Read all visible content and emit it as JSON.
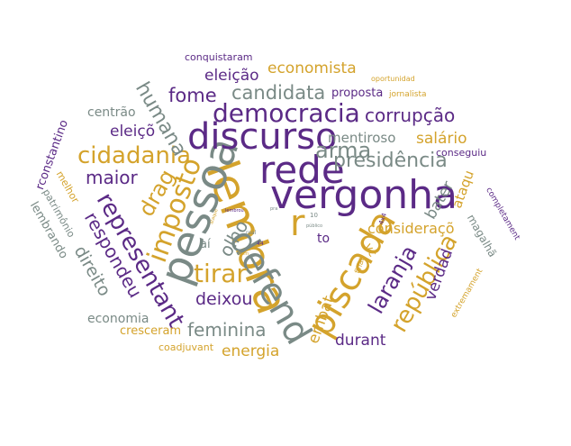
{
  "colors": {
    "purple": "#5b2a86",
    "gold": "#d4a32c",
    "gray": "#7a8a86"
  },
  "words": [
    {
      "id": "vergonha",
      "text": "vergonha"
    },
    {
      "id": "rede",
      "text": "rede"
    },
    {
      "id": "lembra",
      "text": "lembra"
    },
    {
      "id": "pessoa",
      "text": "pessoa"
    },
    {
      "id": "discurso",
      "text": "discurso"
    },
    {
      "id": "piscada",
      "text": "piscada"
    },
    {
      "id": "defend",
      "text": "defend"
    },
    {
      "id": "democracia",
      "text": "democracia"
    },
    {
      "id": "r",
      "text": "r"
    },
    {
      "id": "cidadania",
      "text": "cidadania"
    },
    {
      "id": "imposto",
      "text": "imposto"
    },
    {
      "id": "representant",
      "text": "representant"
    },
    {
      "id": "presidencia",
      "text": "presidência"
    },
    {
      "id": "arma",
      "text": "arma"
    },
    {
      "id": "tirar",
      "text": "tirar"
    },
    {
      "id": "candidata",
      "text": "candidata"
    },
    {
      "id": "republica",
      "text": "república"
    },
    {
      "id": "laranja",
      "text": "laranja"
    },
    {
      "id": "corrupcao",
      "text": "corrupção"
    },
    {
      "id": "fome",
      "text": "fome"
    },
    {
      "id": "humana",
      "text": "humana"
    },
    {
      "id": "drag",
      "text": "drag"
    },
    {
      "id": "feminina",
      "text": "feminina"
    },
    {
      "id": "maior",
      "text": "maior"
    },
    {
      "id": "olho",
      "text": "olho"
    },
    {
      "id": "deixou",
      "text": "deixou"
    },
    {
      "id": "respondeu",
      "text": "respondeu"
    },
    {
      "id": "direito",
      "text": "direito"
    },
    {
      "id": "economista",
      "text": "economista"
    },
    {
      "id": "eleicao",
      "text": "eleição"
    },
    {
      "id": "mentiroso",
      "text": "mentiroso"
    },
    {
      "id": "consideraco",
      "text": "consideraçõ"
    },
    {
      "id": "salario",
      "text": "salário"
    },
    {
      "id": "bater",
      "text": "bater"
    },
    {
      "id": "verdad",
      "text": "verdad"
    },
    {
      "id": "embat",
      "text": "embat"
    },
    {
      "id": "durant",
      "text": "durant"
    },
    {
      "id": "energia",
      "text": "energia"
    },
    {
      "id": "eleic",
      "text": "eleiçõ"
    },
    {
      "id": "proposta",
      "text": "proposta"
    },
    {
      "id": "economia",
      "text": "economia"
    },
    {
      "id": "cresceram",
      "text": "cresceram"
    },
    {
      "id": "centrao",
      "text": "centrão"
    },
    {
      "id": "ataqu",
      "text": "ataqu"
    },
    {
      "id": "rconstantino",
      "text": "rconstantino"
    },
    {
      "id": "lembrando",
      "text": "lembrando"
    },
    {
      "id": "patrimonio",
      "text": "patrimônio"
    },
    {
      "id": "melhor",
      "text": "melhor"
    },
    {
      "id": "magalha",
      "text": "magalhã"
    },
    {
      "id": "conquistaram",
      "text": "conquistaram"
    },
    {
      "id": "coadjuvant",
      "text": "coadjuvant"
    },
    {
      "id": "conseguiu",
      "text": "conseguiu"
    },
    {
      "id": "to",
      "text": "to"
    },
    {
      "id": "ai",
      "text": "aí"
    },
    {
      "id": "vc",
      "text": "vc"
    },
    {
      "id": "jornalista",
      "text": "jornalista"
    },
    {
      "id": "oportunidad",
      "text": "oportunidad"
    },
    {
      "id": "completament",
      "text": "completament"
    },
    {
      "id": "extremament",
      "text": "extremament"
    },
    {
      "id": "final",
      "text": "final"
    },
    {
      "id": "4x4",
      "text": "4x4"
    },
    {
      "id": "n10",
      "text": "10"
    },
    {
      "id": "real",
      "text": "real"
    },
    {
      "id": "n44",
      "text": "44"
    },
    {
      "id": "publico",
      "text": "público"
    },
    {
      "id": "tiny1",
      "text": "ataque"
    },
    {
      "id": "tiny2",
      "text": "lembrou"
    },
    {
      "id": "tiny3",
      "text": "bom"
    },
    {
      "id": "tiny4",
      "text": "pra"
    }
  ]
}
